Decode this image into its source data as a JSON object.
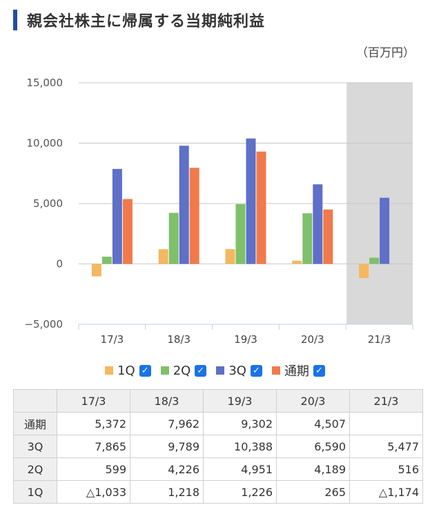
{
  "title": "親会社株主に帰属する当期純利益",
  "unit": "（百万円）",
  "colors": {
    "1Q": "#f4b860",
    "2Q": "#7fc06a",
    "3Q": "#5e70c7",
    "通期": "#f07a4c",
    "title_bar": "#1f4e9c",
    "highlight_band": "#d9d9d9",
    "checkbox": "#1a73e8"
  },
  "legend": [
    {
      "label": "1Q",
      "checked": true
    },
    {
      "label": "2Q",
      "checked": true
    },
    {
      "label": "3Q",
      "checked": true
    },
    {
      "label": "通期",
      "checked": true
    }
  ],
  "chart_data": {
    "type": "bar",
    "categories": [
      "17/3",
      "18/3",
      "19/3",
      "20/3",
      "21/3"
    ],
    "series": [
      {
        "name": "1Q",
        "values": [
          -1033,
          1218,
          1226,
          265,
          -1174
        ]
      },
      {
        "name": "2Q",
        "values": [
          599,
          4226,
          4951,
          4189,
          516
        ]
      },
      {
        "name": "3Q",
        "values": [
          7865,
          9789,
          10388,
          6590,
          5477
        ]
      },
      {
        "name": "通期",
        "values": [
          5372,
          7962,
          9302,
          4507,
          null
        ]
      }
    ],
    "ylim": [
      -5000,
      15000
    ],
    "yticks": [
      "15,000",
      "10,000",
      "5,000",
      "0",
      "−5,000"
    ],
    "ytick_values": [
      15000,
      10000,
      5000,
      0,
      -5000
    ],
    "highlighted_category": "21/3",
    "grid": true
  },
  "table": {
    "header": [
      "",
      "17/3",
      "18/3",
      "19/3",
      "20/3",
      "21/3"
    ],
    "rows": [
      {
        "label": "通期",
        "cells": [
          "5,372",
          "7,962",
          "9,302",
          "4,507",
          ""
        ]
      },
      {
        "label": "3Q",
        "cells": [
          "7,865",
          "9,789",
          "10,388",
          "6,590",
          "5,477"
        ]
      },
      {
        "label": "2Q",
        "cells": [
          "599",
          "4,226",
          "4,951",
          "4,189",
          "516"
        ]
      },
      {
        "label": "1Q",
        "cells": [
          "△1,033",
          "1,218",
          "1,226",
          "265",
          "△1,174"
        ]
      }
    ]
  }
}
